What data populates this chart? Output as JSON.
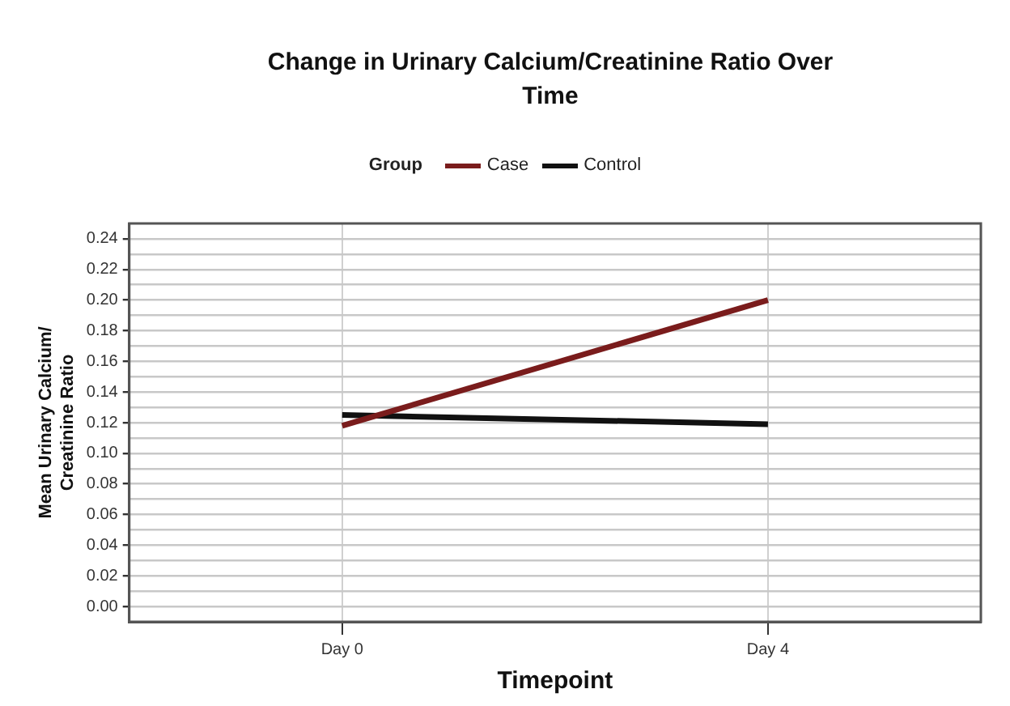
{
  "chart_data": {
    "type": "line",
    "title": "Change in Urinary Calcium/Creatinine Ratio Over Time",
    "xlabel": "Timepoint",
    "ylabel": "Mean Urinary Calcium/ Creatinine Ratio",
    "legend_title": "Group",
    "legend": "top",
    "grid": true,
    "categories": [
      "Day 0",
      "Day 4"
    ],
    "series": [
      {
        "name": "Case",
        "color": "#7a1c1c",
        "values": [
          0.118,
          0.2
        ]
      },
      {
        "name": "Control",
        "color": "#111111",
        "values": [
          0.125,
          0.119
        ]
      }
    ],
    "ylim": [
      -0.01,
      0.25
    ],
    "yticks": [
      {
        "value": 0,
        "label": "0.00"
      },
      {
        "value": 0.01,
        "label": null
      },
      0.02,
      {
        "value": 0.03,
        "label": null
      },
      0.04,
      {
        "value": 0.05,
        "label": null
      },
      0.06,
      {
        "value": 0.07,
        "label": null
      },
      0.08,
      {
        "value": 0.09,
        "label": null
      },
      {
        "value": 0.1,
        "label": "0.10"
      },
      {
        "value": 0.11,
        "label": null
      },
      0.12,
      {
        "value": 0.13,
        "label": null
      },
      0.14,
      {
        "value": 0.15,
        "label": null
      },
      0.16,
      {
        "value": 0.17,
        "label": null
      },
      0.18,
      {
        "value": 0.19,
        "label": null
      },
      {
        "value": 0.2,
        "label": "0.20"
      },
      {
        "value": 0.21,
        "label": null
      },
      0.22,
      {
        "value": 0.23,
        "label": null
      },
      0.24
    ]
  }
}
